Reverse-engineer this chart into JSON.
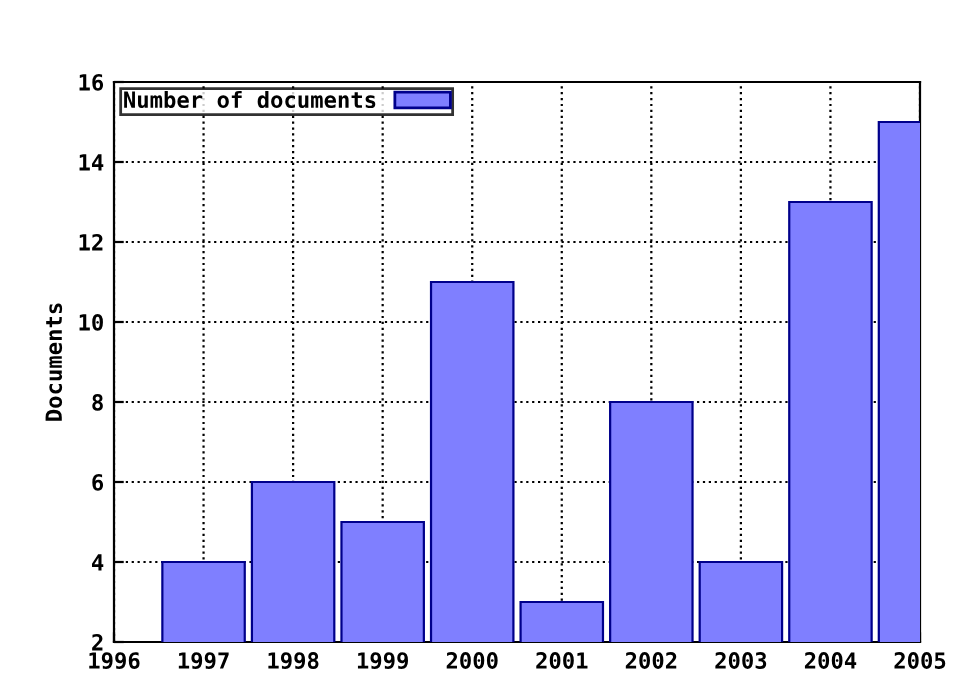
{
  "chart_data": {
    "type": "bar",
    "ylabel": "Documents",
    "x": [
      1997,
      1998,
      1999,
      2000,
      2001,
      2002,
      2003,
      2004,
      2005
    ],
    "series": [
      {
        "name": "Number of documents",
        "color": "#7f7fff",
        "values": [
          4,
          6,
          5,
          11,
          3,
          8,
          4,
          13,
          15
        ]
      }
    ],
    "xlim": [
      1996,
      2005
    ],
    "xticks": [
      1996,
      1997,
      1998,
      1999,
      2000,
      2001,
      2002,
      2003,
      2004,
      2005
    ],
    "ylim": [
      2,
      16
    ],
    "yticks": [
      2,
      4,
      6,
      8,
      10,
      12,
      14,
      16
    ],
    "grid": true,
    "legend": "top left",
    "line_style": "dotted"
  }
}
